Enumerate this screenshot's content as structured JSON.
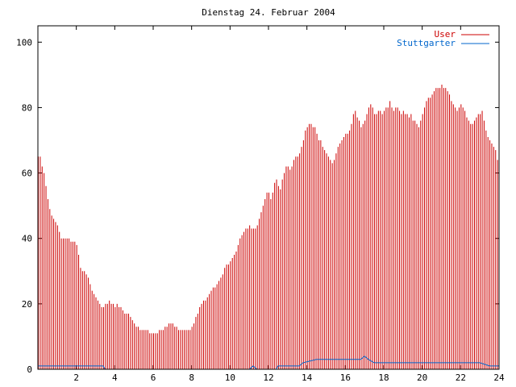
{
  "chart_data": {
    "type": "bar",
    "title": "Dienstag 24. Februar 2004",
    "xlim": [
      0,
      24
    ],
    "ylim": [
      0,
      105
    ],
    "xticks": [
      2,
      4,
      6,
      8,
      10,
      12,
      14,
      16,
      18,
      20,
      22,
      24
    ],
    "yticks": [
      0,
      20,
      40,
      60,
      80,
      100
    ],
    "xtick_labels": [
      "2",
      "4",
      "6",
      "8",
      "10",
      "12",
      "14",
      "16",
      "18",
      "20",
      "22",
      "24"
    ],
    "ytick_labels": [
      "0",
      "20",
      "40",
      "60",
      "80",
      "100"
    ],
    "grid": false,
    "legend_position": "top-right",
    "series": [
      {
        "name": "User",
        "style": "impulses",
        "color": "#cc0000",
        "points": [
          [
            0.0,
            65
          ],
          [
            0.1,
            65
          ],
          [
            0.2,
            62
          ],
          [
            0.3,
            60
          ],
          [
            0.4,
            56
          ],
          [
            0.5,
            52
          ],
          [
            0.6,
            49
          ],
          [
            0.7,
            47
          ],
          [
            0.8,
            46
          ],
          [
            0.9,
            45
          ],
          [
            1.0,
            44
          ],
          [
            1.1,
            42
          ],
          [
            1.2,
            40
          ],
          [
            1.3,
            40
          ],
          [
            1.4,
            40
          ],
          [
            1.5,
            40
          ],
          [
            1.6,
            40
          ],
          [
            1.7,
            39
          ],
          [
            1.8,
            39
          ],
          [
            1.9,
            39
          ],
          [
            2.0,
            38
          ],
          [
            2.1,
            35
          ],
          [
            2.2,
            31
          ],
          [
            2.3,
            30
          ],
          [
            2.4,
            30
          ],
          [
            2.5,
            29
          ],
          [
            2.6,
            28
          ],
          [
            2.7,
            26
          ],
          [
            2.8,
            24
          ],
          [
            2.9,
            23
          ],
          [
            3.0,
            22
          ],
          [
            3.1,
            21
          ],
          [
            3.2,
            20
          ],
          [
            3.3,
            19
          ],
          [
            3.4,
            19
          ],
          [
            3.5,
            20
          ],
          [
            3.6,
            20
          ],
          [
            3.7,
            21
          ],
          [
            3.8,
            20
          ],
          [
            3.9,
            20
          ],
          [
            4.0,
            19
          ],
          [
            4.1,
            20
          ],
          [
            4.2,
            19
          ],
          [
            4.3,
            19
          ],
          [
            4.4,
            18
          ],
          [
            4.5,
            17
          ],
          [
            4.6,
            17
          ],
          [
            4.7,
            17
          ],
          [
            4.8,
            16
          ],
          [
            4.9,
            15
          ],
          [
            5.0,
            14
          ],
          [
            5.1,
            13
          ],
          [
            5.2,
            13
          ],
          [
            5.3,
            12
          ],
          [
            5.4,
            12
          ],
          [
            5.5,
            12
          ],
          [
            5.6,
            12
          ],
          [
            5.7,
            12
          ],
          [
            5.8,
            11
          ],
          [
            5.9,
            11
          ],
          [
            6.0,
            11
          ],
          [
            6.1,
            11
          ],
          [
            6.2,
            11
          ],
          [
            6.3,
            12
          ],
          [
            6.4,
            12
          ],
          [
            6.5,
            12
          ],
          [
            6.6,
            13
          ],
          [
            6.7,
            13
          ],
          [
            6.8,
            14
          ],
          [
            6.9,
            14
          ],
          [
            7.0,
            14
          ],
          [
            7.1,
            13
          ],
          [
            7.2,
            13
          ],
          [
            7.3,
            12
          ],
          [
            7.4,
            12
          ],
          [
            7.5,
            12
          ],
          [
            7.6,
            12
          ],
          [
            7.7,
            12
          ],
          [
            7.8,
            12
          ],
          [
            7.9,
            12
          ],
          [
            8.0,
            13
          ],
          [
            8.1,
            14
          ],
          [
            8.2,
            16
          ],
          [
            8.3,
            17
          ],
          [
            8.4,
            19
          ],
          [
            8.5,
            20
          ],
          [
            8.6,
            21
          ],
          [
            8.7,
            21
          ],
          [
            8.8,
            22
          ],
          [
            8.9,
            23
          ],
          [
            9.0,
            24
          ],
          [
            9.1,
            25
          ],
          [
            9.2,
            25
          ],
          [
            9.3,
            26
          ],
          [
            9.4,
            27
          ],
          [
            9.5,
            28
          ],
          [
            9.6,
            29
          ],
          [
            9.7,
            31
          ],
          [
            9.8,
            32
          ],
          [
            9.9,
            32
          ],
          [
            10.0,
            33
          ],
          [
            10.1,
            34
          ],
          [
            10.2,
            35
          ],
          [
            10.3,
            36
          ],
          [
            10.4,
            38
          ],
          [
            10.5,
            40
          ],
          [
            10.6,
            41
          ],
          [
            10.7,
            42
          ],
          [
            10.8,
            43
          ],
          [
            10.9,
            43
          ],
          [
            11.0,
            44
          ],
          [
            11.1,
            43
          ],
          [
            11.2,
            43
          ],
          [
            11.3,
            43
          ],
          [
            11.4,
            44
          ],
          [
            11.5,
            46
          ],
          [
            11.6,
            48
          ],
          [
            11.7,
            50
          ],
          [
            11.8,
            52
          ],
          [
            11.9,
            54
          ],
          [
            12.0,
            54
          ],
          [
            12.1,
            52
          ],
          [
            12.2,
            54
          ],
          [
            12.3,
            57
          ],
          [
            12.4,
            58
          ],
          [
            12.5,
            56
          ],
          [
            12.6,
            55
          ],
          [
            12.7,
            58
          ],
          [
            12.8,
            60
          ],
          [
            12.9,
            62
          ],
          [
            13.0,
            62
          ],
          [
            13.1,
            61
          ],
          [
            13.2,
            62
          ],
          [
            13.3,
            64
          ],
          [
            13.4,
            65
          ],
          [
            13.5,
            65
          ],
          [
            13.6,
            66
          ],
          [
            13.7,
            68
          ],
          [
            13.8,
            70
          ],
          [
            13.9,
            73
          ],
          [
            14.0,
            74
          ],
          [
            14.1,
            75
          ],
          [
            14.2,
            75
          ],
          [
            14.3,
            74
          ],
          [
            14.4,
            74
          ],
          [
            14.5,
            72
          ],
          [
            14.6,
            70
          ],
          [
            14.7,
            70
          ],
          [
            14.8,
            68
          ],
          [
            14.9,
            67
          ],
          [
            15.0,
            66
          ],
          [
            15.1,
            65
          ],
          [
            15.2,
            64
          ],
          [
            15.3,
            63
          ],
          [
            15.4,
            64
          ],
          [
            15.5,
            66
          ],
          [
            15.6,
            68
          ],
          [
            15.7,
            69
          ],
          [
            15.8,
            70
          ],
          [
            15.9,
            71
          ],
          [
            16.0,
            72
          ],
          [
            16.1,
            72
          ],
          [
            16.2,
            73
          ],
          [
            16.3,
            75
          ],
          [
            16.4,
            78
          ],
          [
            16.5,
            79
          ],
          [
            16.6,
            77
          ],
          [
            16.7,
            76
          ],
          [
            16.8,
            74
          ],
          [
            16.9,
            75
          ],
          [
            17.0,
            76
          ],
          [
            17.1,
            78
          ],
          [
            17.2,
            80
          ],
          [
            17.3,
            81
          ],
          [
            17.4,
            80
          ],
          [
            17.5,
            78
          ],
          [
            17.6,
            78
          ],
          [
            17.7,
            79
          ],
          [
            17.8,
            79
          ],
          [
            17.9,
            78
          ],
          [
            18.0,
            79
          ],
          [
            18.1,
            80
          ],
          [
            18.2,
            80
          ],
          [
            18.3,
            82
          ],
          [
            18.4,
            80
          ],
          [
            18.5,
            79
          ],
          [
            18.6,
            80
          ],
          [
            18.7,
            80
          ],
          [
            18.8,
            79
          ],
          [
            18.9,
            78
          ],
          [
            19.0,
            79
          ],
          [
            19.1,
            78
          ],
          [
            19.2,
            78
          ],
          [
            19.3,
            77
          ],
          [
            19.4,
            78
          ],
          [
            19.5,
            76
          ],
          [
            19.6,
            76
          ],
          [
            19.7,
            75
          ],
          [
            19.8,
            74
          ],
          [
            19.9,
            76
          ],
          [
            20.0,
            78
          ],
          [
            20.1,
            80
          ],
          [
            20.2,
            82
          ],
          [
            20.3,
            83
          ],
          [
            20.4,
            83
          ],
          [
            20.5,
            84
          ],
          [
            20.6,
            85
          ],
          [
            20.7,
            86
          ],
          [
            20.8,
            86
          ],
          [
            20.9,
            86
          ],
          [
            21.0,
            87
          ],
          [
            21.1,
            86
          ],
          [
            21.2,
            86
          ],
          [
            21.3,
            85
          ],
          [
            21.4,
            84
          ],
          [
            21.5,
            82
          ],
          [
            21.6,
            81
          ],
          [
            21.7,
            80
          ],
          [
            21.8,
            79
          ],
          [
            21.9,
            80
          ],
          [
            22.0,
            81
          ],
          [
            22.1,
            80
          ],
          [
            22.2,
            79
          ],
          [
            22.3,
            77
          ],
          [
            22.4,
            76
          ],
          [
            22.5,
            75
          ],
          [
            22.6,
            75
          ],
          [
            22.7,
            76
          ],
          [
            22.8,
            77
          ],
          [
            22.9,
            78
          ],
          [
            23.0,
            78
          ],
          [
            23.1,
            79
          ],
          [
            23.2,
            76
          ],
          [
            23.3,
            73
          ],
          [
            23.4,
            71
          ],
          [
            23.5,
            70
          ],
          [
            23.6,
            69
          ],
          [
            23.7,
            68
          ],
          [
            23.8,
            67
          ],
          [
            23.9,
            64
          ]
        ]
      },
      {
        "name": "Stuttgarter",
        "style": "lines",
        "color": "#0066cc",
        "points": [
          [
            0.0,
            1
          ],
          [
            3.4,
            1
          ],
          [
            3.5,
            0
          ],
          [
            11.0,
            0
          ],
          [
            11.2,
            1
          ],
          [
            11.4,
            0
          ],
          [
            12.4,
            0
          ],
          [
            12.5,
            1
          ],
          [
            13.6,
            1
          ],
          [
            13.8,
            2
          ],
          [
            14.5,
            3
          ],
          [
            15.2,
            3
          ],
          [
            15.5,
            3
          ],
          [
            16.8,
            3
          ],
          [
            17.0,
            4
          ],
          [
            17.2,
            3
          ],
          [
            17.5,
            2
          ],
          [
            23.0,
            2
          ],
          [
            23.5,
            1
          ],
          [
            24.0,
            1
          ]
        ]
      }
    ]
  }
}
